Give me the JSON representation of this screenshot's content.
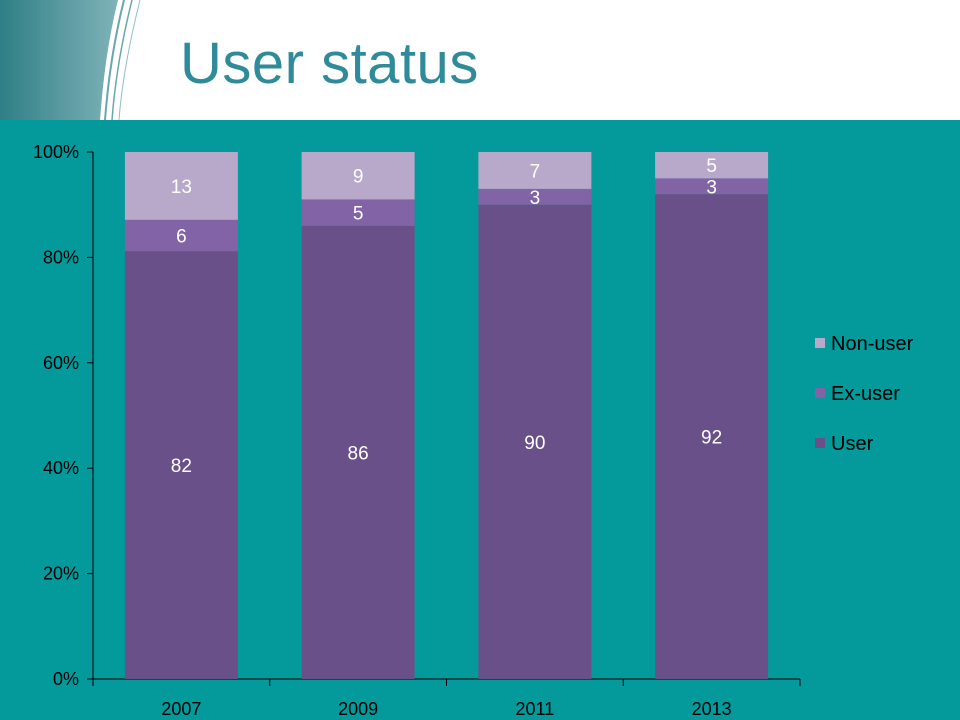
{
  "slide": {
    "title": "User status",
    "background_color": "#04999a",
    "title_color": "#2f8a9a"
  },
  "chart_data": {
    "type": "bar",
    "stacked": true,
    "percent_stacked": true,
    "categories": [
      "2007",
      "2009",
      "2011",
      "2013"
    ],
    "series": [
      {
        "name": "User",
        "values": [
          82,
          86,
          90,
          92
        ],
        "color": "#6a5088",
        "label_color": "#ffffff"
      },
      {
        "name": "Ex-user",
        "values": [
          6,
          5,
          3,
          3
        ],
        "color": "#8264a6",
        "label_color": "#ffffff"
      },
      {
        "name": "Non-user",
        "values": [
          13,
          9,
          7,
          5
        ],
        "color": "#b8a9cb",
        "label_color": "#ffffff"
      }
    ],
    "y_ticks": [
      "0%",
      "20%",
      "40%",
      "60%",
      "80%",
      "100%"
    ],
    "ylim": [
      0,
      100
    ],
    "grid": false,
    "legend_position": "right",
    "legend_order": [
      "Non-user",
      "Ex-user",
      "User"
    ]
  }
}
